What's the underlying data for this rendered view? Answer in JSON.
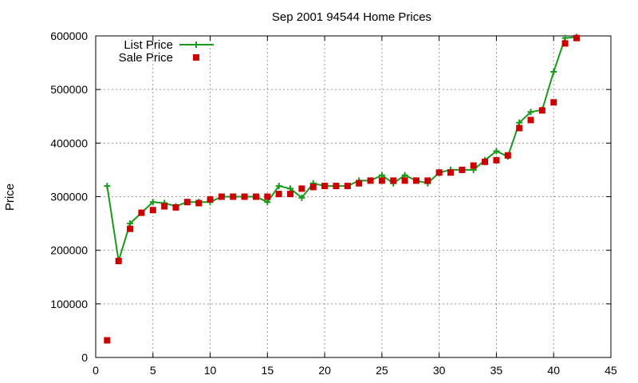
{
  "chart_data": {
    "type": "line",
    "title": "Sep 2001 94544 Home Prices",
    "xlabel": "",
    "ylabel": "Price",
    "xlim": [
      0,
      45
    ],
    "ylim": [
      0,
      600000
    ],
    "x_ticks": [
      0,
      5,
      10,
      15,
      20,
      25,
      30,
      35,
      40,
      45
    ],
    "y_ticks": [
      0,
      100000,
      200000,
      300000,
      400000,
      500000,
      600000
    ],
    "grid": true,
    "legend_position": "top-left",
    "series": [
      {
        "name": "List Price",
        "style": "line with plus markers",
        "color": "#1a9a1a",
        "x": [
          1,
          2,
          3,
          4,
          5,
          6,
          7,
          8,
          9,
          10,
          11,
          12,
          13,
          14,
          15,
          16,
          17,
          18,
          19,
          20,
          21,
          22,
          23,
          24,
          25,
          26,
          27,
          28,
          29,
          30,
          31,
          32,
          33,
          34,
          35,
          36,
          37,
          38,
          39,
          40,
          41,
          42
        ],
        "y": [
          320000,
          180000,
          250000,
          270000,
          290000,
          288000,
          282000,
          290000,
          290000,
          290000,
          300000,
          300000,
          300000,
          300000,
          290000,
          320000,
          315000,
          298000,
          325000,
          320000,
          320000,
          320000,
          330000,
          330000,
          340000,
          325000,
          340000,
          330000,
          325000,
          345000,
          350000,
          350000,
          350000,
          368000,
          385000,
          375000,
          438000,
          458000,
          462000,
          533000,
          596000,
          598000
        ]
      },
      {
        "name": "Sale Price",
        "style": "square markers",
        "color": "#cc0000",
        "x": [
          1,
          2,
          3,
          4,
          5,
          6,
          7,
          8,
          9,
          10,
          11,
          12,
          13,
          14,
          15,
          16,
          17,
          18,
          19,
          20,
          21,
          22,
          23,
          24,
          25,
          26,
          27,
          28,
          29,
          30,
          31,
          32,
          33,
          34,
          35,
          36,
          37,
          38,
          39,
          40,
          41,
          42
        ],
        "y": [
          32000,
          180000,
          240000,
          270000,
          275000,
          282000,
          280000,
          290000,
          288000,
          295000,
          300000,
          300000,
          300000,
          300000,
          300000,
          305000,
          305000,
          315000,
          318000,
          320000,
          320000,
          320000,
          325000,
          330000,
          330000,
          330000,
          330000,
          330000,
          330000,
          345000,
          345000,
          350000,
          358000,
          365000,
          368000,
          377000,
          428000,
          443000,
          461000,
          476000,
          586000,
          596000
        ]
      }
    ]
  }
}
